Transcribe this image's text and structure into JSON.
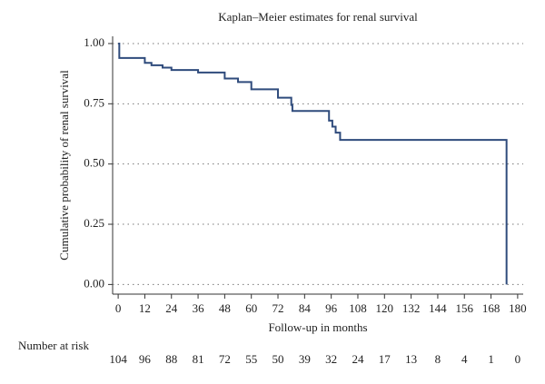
{
  "chart_data": {
    "type": "line",
    "step": "post",
    "title": "Kaplan–Meier estimates for renal survival",
    "x_label": "Follow-up in months",
    "y_label": "Cumulative probability of renal survival",
    "x": [
      0,
      0.5,
      12,
      15,
      20,
      24,
      36,
      48,
      54,
      60,
      72,
      78,
      78.5,
      95,
      96.5,
      98,
      100,
      175
    ],
    "series": [
      {
        "color": "#2f4b7c",
        "values": [
          1.0,
          0.94,
          0.92,
          0.91,
          0.9,
          0.89,
          0.88,
          0.855,
          0.84,
          0.81,
          0.775,
          0.745,
          0.72,
          0.68,
          0.655,
          0.63,
          0.6,
          0.0
        ]
      }
    ],
    "xlim": [
      -2.5,
      182.5
    ],
    "ylim": [
      -0.04,
      1.03
    ],
    "xticks": [
      0,
      12,
      24,
      36,
      48,
      60,
      72,
      84,
      96,
      108,
      120,
      132,
      144,
      156,
      168,
      180
    ],
    "yticks": [
      {
        "value": 0,
        "label": "0.00"
      },
      {
        "value": 0.25,
        "label": "0.25"
      },
      {
        "value": 0.5,
        "label": "0.50"
      },
      {
        "value": 0.75,
        "label": "0.75"
      },
      {
        "value": 1,
        "label": "1.00"
      }
    ],
    "grid": true,
    "number_at_risk": {
      "label": "Number at risk",
      "values": [
        104,
        96,
        88,
        81,
        72,
        55,
        50,
        39,
        32,
        24,
        17,
        13,
        8,
        4,
        1,
        0
      ]
    }
  }
}
